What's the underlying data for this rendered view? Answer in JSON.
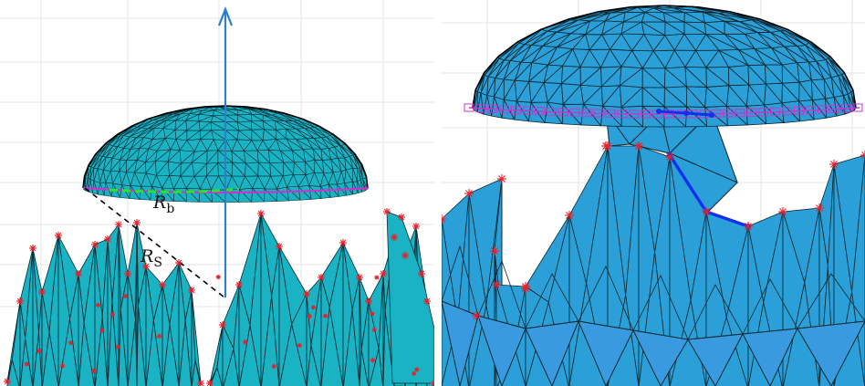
{
  "left_panel": {
    "labels": {
      "r_b": {
        "symbol": "R",
        "sub": "b"
      },
      "r_s": {
        "symbol": "R",
        "sub": "S"
      }
    }
  },
  "colors": {
    "mesh_fill": "#19b3c4",
    "mesh_fill_right": "#2a9fd8",
    "mesh_edge": "#0b2a33",
    "grid": "#e6e6e6",
    "arrow": "#2d7fc9",
    "rim": "#cc33cc",
    "markers": "#e8202a",
    "path": "#1030ee",
    "contact": "#33dd33",
    "dashed": "#000000"
  }
}
